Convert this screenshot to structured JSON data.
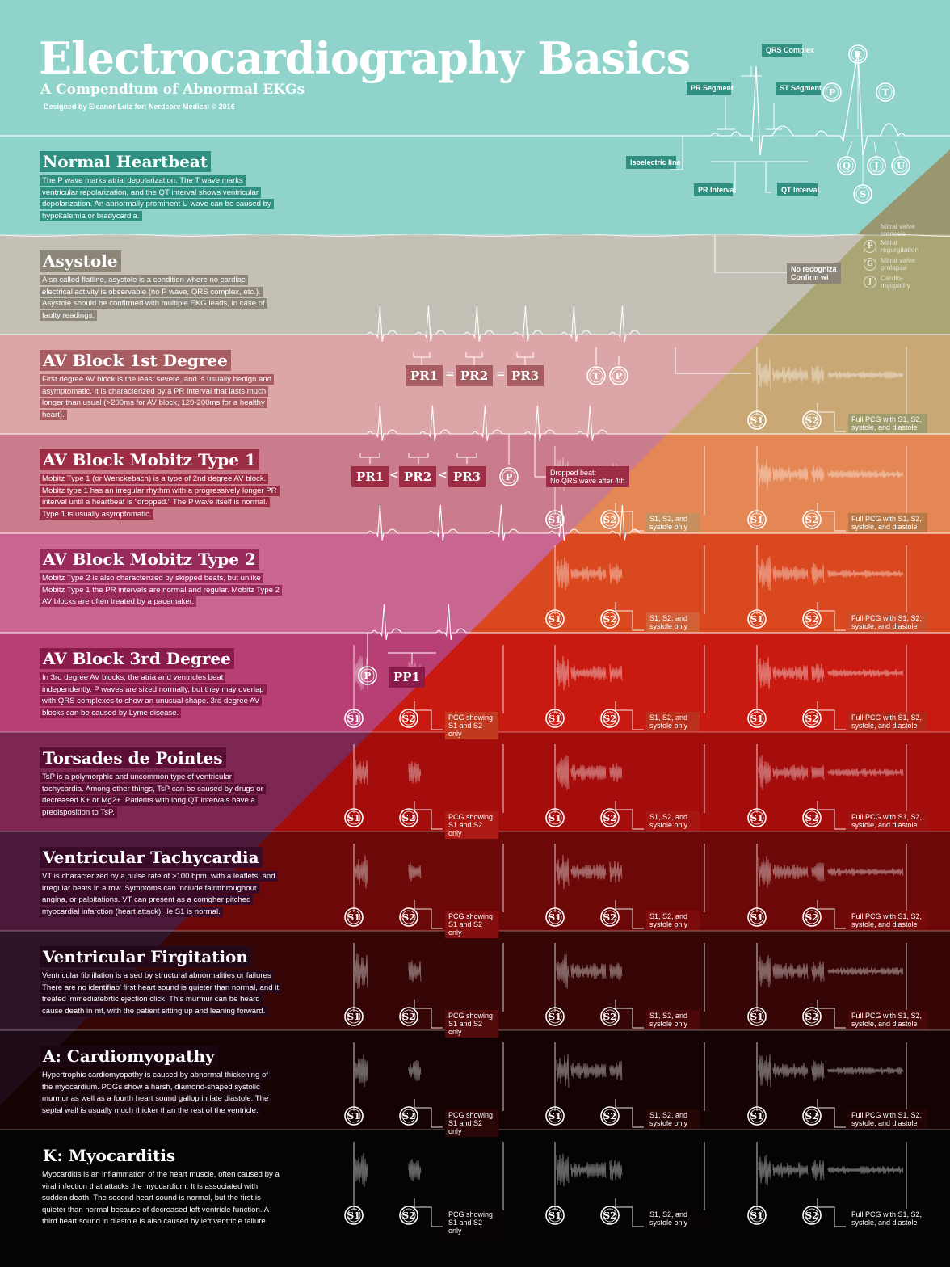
{
  "header": {
    "title": "Electrocardiography Basics",
    "subtitle": "A Compendium of Abnormal EKGs",
    "credit": "Designed by Eleanor Lutz for: Nerdcore Medical © 2016"
  },
  "diagram_labels": {
    "qrs": "QRS Complex",
    "pr_segment": "PR Segment",
    "st_segment": "ST Segment",
    "isoelectric": "Isoelectric line",
    "pr_interval": "PR Interval",
    "qt_interval": "QT Interval",
    "waves": [
      "R",
      "P",
      "T",
      "Q",
      "J",
      "U",
      "S"
    ]
  },
  "sections": [
    {
      "title": "Normal Heartbeat",
      "color": "#8fd3cb",
      "hbg": "#2f8f80",
      "text": [
        "The P wave marks atrial depolarization. The T wave marks",
        "ventricular repolarization, and the QT interval shows ventricular",
        "depolarization. An abnormally prominent U wave can be caused by",
        "hypokalemia or bradycardia."
      ]
    },
    {
      "title": "Asystole",
      "color": "#c5c0b6",
      "hbg": "#8c857a",
      "text": [
        "Also called flatline, asystole is a condition where no cardiac",
        "electrical activity is observable (no P wave, QRS complex, etc.).",
        "Asystole should be confirmed with multiple EKG leads, in case of",
        "faulty readings."
      ]
    },
    {
      "title": "AV Block 1st Degree",
      "color": "#dca6a8",
      "hbg": "#a75c62",
      "text": [
        "First degree AV block is the least severe, and is usually benign and",
        "asymptomatic. It is characterized by a PR interval that lasts much",
        "longer than usual (>200ms for AV block, 120-200ms for a healthy",
        "heart)."
      ]
    },
    {
      "title": "AV Block Mobitz Type 1",
      "color": "#cb7c8c",
      "hbg": "#9c2d45",
      "text": [
        "Mobitz Type 1 (or Wenckebach) is a type of 2nd degree AV block.",
        "Mobitz type 1 has an irregular rhythm with a progressively longer PR",
        "interval until a heartbeat is \"dropped.\" The P wave itself is normal.",
        "Type 1 is usually asymptomatic."
      ]
    },
    {
      "title": "AV Block Mobitz Type 2",
      "color": "#c96590",
      "hbg": "#992a5c",
      "text": [
        "Mobitz Type 2 is also characterized by skipped beats, but unlike",
        "Mobitz Type 1 the PR intervals are normal and regular. Mobitz Type 2",
        "AV blocks are often treated by a pacemaker."
      ]
    },
    {
      "title": "AV Block 3rd Degree",
      "color": "#b83f73",
      "hbg": "#8a1c4c",
      "text": [
        "In 3rd degree AV blocks, the atria and ventricles beat",
        "independently. P waves are sized normally, but they may overlap",
        "with QRS complexes to show an unusual shape. 3rd degree AV",
        "blocks can be caused by Lyme disease."
      ]
    },
    {
      "title": "Torsades de Pointes",
      "color": "#7d2752",
      "hbg": "#5a0e34",
      "text": [
        "TsP is a polymorphic and uncommon type of ventricular",
        "tachycardia. Among other things, TsP can be caused by drugs or",
        "decreased K+ or Mg2+. Patients with long QT intervals have a",
        "predisposition to TsP."
      ]
    },
    {
      "title": "Ventricular Tachycardia",
      "color": "#4c1a3a",
      "hbg": "#3a0b29",
      "text": [
        "VT is characterized by a pulse rate of >100 bpm, with a leaflets, and",
        "irregular beats in a row. Symptoms can include faintthroughout",
        "angina, or palpitations. VT can present as a comgher pitched",
        "myocardial infarction (heart attack).       ile S1 is normal."
      ]
    },
    {
      "title": "Ventricular Firgitation",
      "color": "#2f1428",
      "hbg": "#23081a",
      "text": [
        "Ventricular fibrillation is a sed by structural abnormalities or failures",
        "There are no identifiab' first heart sound is quieter than normal, and it",
        "treated immediatebrtic ejection click. This murmur can be heard",
        "cause death in mt, with the patient sitting up and leaning forward."
      ]
    },
    {
      "title": "A: Cardiomyopathy",
      "color": "#1d0c17",
      "hbg": "#1a0610",
      "text": [
        "Hypertrophic cardiomyopathy is caused by abnormal thickening of",
        "the myocardium. PCGs show a harsh, diamond-shaped systolic",
        "murmur as well as a fourth heart sound gallop in late diastole. The",
        "septal wall is usually much thicker than the rest of the ventricle."
      ]
    },
    {
      "title": "K: Myocarditis",
      "color": "#050505",
      "hbg": "",
      "text": [
        "Myocarditis is an inflammation of the heart muscle, often caused by a",
        "viral infection that attacks the myocardium. It is associated with",
        "sudden death. The second heart sound is normal, but the first is",
        "quieter than normal because of decreased left ventricle function. A",
        "third heart sound in diastole is also caused by left ventricle failure."
      ]
    }
  ],
  "pcg_rows": [
    {
      "colors": [
        "#9b9b6e",
        "#a0a070",
        "#9e9c6c"
      ],
      "cols": [
        null,
        null,
        {
          "label": "Full PCG with S1, S2, systole, and diastole"
        }
      ]
    },
    {
      "colors": [
        "#c8a070",
        "#c49060",
        "#b87a48"
      ],
      "cols": [
        null,
        {
          "label": "S1, S2, and systole only"
        },
        {
          "label": "Full PCG with S1, S2, systole, and diastole"
        }
      ]
    },
    {
      "colors": [
        "#d96a40",
        "#d06038",
        "#c8502e"
      ],
      "cols": [
        null,
        {
          "label": "S1, S2, and systole only"
        },
        {
          "label": "Full PCG with S1, S2, systole, and diastole"
        }
      ]
    },
    {
      "colors": [
        "#c13a20",
        "#b9301c",
        "#b02818"
      ],
      "cols": [
        {
          "label": "PCG showing S1 and S2 only"
        },
        {
          "label": "S1, S2, and systole only"
        },
        {
          "label": "Full PCG with S1, S2, systole, and diastole"
        }
      ]
    },
    {
      "colors": [
        "#ad1a14",
        "#a61612",
        "#9e1410"
      ],
      "cols": [
        {
          "label": "PCG showing S1 and S2 only"
        },
        {
          "label": "S1, S2, and systole only"
        },
        {
          "label": "Full PCG with S1, S2, systole, and diastole"
        }
      ]
    },
    {
      "colors": [
        "#850e0e",
        "#7e0c0c",
        "#760a0a"
      ],
      "cols": [
        {
          "label": "PCG showing S1 and S2 only"
        },
        {
          "label": "S1, S2, and systole only"
        },
        {
          "label": "Full PCG with S1, S2, systole, and diastole"
        }
      ]
    },
    {
      "colors": [
        "#520a0a",
        "#4c0808",
        "#460707"
      ],
      "cols": [
        {
          "label": "PCG showing S1 and S2 only"
        },
        {
          "label": "S1, S2, and systole only"
        },
        {
          "label": "Full PCG with S1, S2, systole, and diastole"
        }
      ]
    },
    {
      "colors": [
        "#2a0606",
        "#260505",
        "#220404"
      ],
      "cols": [
        {
          "label": "PCG showing S1 and S2 only"
        },
        {
          "label": "S1, S2, and systole only"
        },
        {
          "label": "Full PCG with S1, S2, systole, and diastole"
        }
      ]
    },
    {
      "colors": [
        "#080404",
        "#070303",
        "#060303"
      ],
      "cols": [
        {
          "label": "PCG showing S1 and S2 only"
        },
        {
          "label": "S1, S2, and systole only"
        },
        {
          "label": "Full PCG with S1, S2, systole, and diastole"
        }
      ]
    }
  ],
  "ekg_labels": {
    "pr1": "PR1",
    "pr2": "PR2",
    "pr3": "PR3",
    "eq": "=",
    "lt": "<",
    "pp1": "PP1",
    "dropped1": "Dropped beat:",
    "dropped2": "No QRS wave after 4th",
    "norecog1": "No recogniza",
    "norecog2": "Confirm wi",
    "s1": "S1",
    "s2": "S2",
    "t": "T",
    "p": "P"
  },
  "valves": [
    {
      "letter": "",
      "label": "Mitral valve stenosis"
    },
    {
      "letter": "F",
      "label": "Mitral regurgitation"
    },
    {
      "letter": "G",
      "label": "Mitral valve prolapse"
    },
    {
      "letter": "J",
      "label": "Cardio-myopathy"
    }
  ]
}
